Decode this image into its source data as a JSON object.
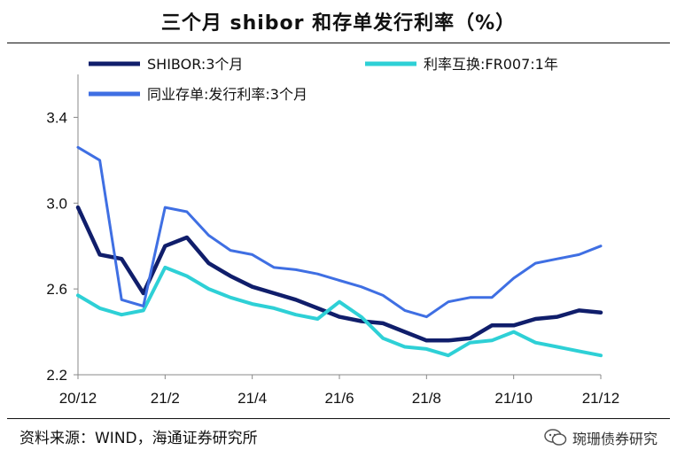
{
  "title": "三个月 shibor 和存单发行利率（%）",
  "source": "资料来源：WIND，海通证券研究所",
  "watermark": "琬珊债券研究",
  "chart_data": {
    "type": "line",
    "ylim": [
      2.2,
      3.6
    ],
    "yticks": [
      "2.2",
      "2.6",
      "3.0",
      "3.4"
    ],
    "xticks": [
      "20/12",
      "21/2",
      "21/4",
      "21/6",
      "21/8",
      "21/10",
      "21/12"
    ],
    "legend_position": "top-left",
    "series": [
      {
        "name": "SHIBOR:3个月",
        "color": "#101e6b",
        "x": [
          "20/12",
          "20/12.5",
          "21/1",
          "21/1.5",
          "21/2",
          "21/2.5",
          "21/3",
          "21/3.5",
          "21/4",
          "21/4.5",
          "21/5",
          "21/5.5",
          "21/6",
          "21/6.5",
          "21/7",
          "21/7.5",
          "21/8",
          "21/8.5",
          "21/9",
          "21/9.5",
          "21/10",
          "21/10.5",
          "21/11",
          "21/11.5",
          "21/12"
        ],
        "values": [
          2.98,
          2.76,
          2.74,
          2.58,
          2.8,
          2.84,
          2.72,
          2.66,
          2.61,
          2.58,
          2.55,
          2.51,
          2.47,
          2.45,
          2.44,
          2.4,
          2.36,
          2.36,
          2.37,
          2.43,
          2.43,
          2.46,
          2.47,
          2.5,
          2.49
        ]
      },
      {
        "name": "利率互换:FR007:1年",
        "color": "#2ed0d6",
        "x": [
          "20/12",
          "20/12.5",
          "21/1",
          "21/1.5",
          "21/2",
          "21/2.5",
          "21/3",
          "21/3.5",
          "21/4",
          "21/4.5",
          "21/5",
          "21/5.5",
          "21/6",
          "21/6.5",
          "21/7",
          "21/7.5",
          "21/8",
          "21/8.5",
          "21/9",
          "21/9.5",
          "21/10",
          "21/10.5",
          "21/11",
          "21/11.5",
          "21/12"
        ],
        "values": [
          2.57,
          2.51,
          2.48,
          2.5,
          2.7,
          2.66,
          2.6,
          2.56,
          2.53,
          2.51,
          2.48,
          2.46,
          2.54,
          2.47,
          2.37,
          2.33,
          2.32,
          2.29,
          2.35,
          2.36,
          2.4,
          2.35,
          2.33,
          2.31,
          2.29
        ]
      },
      {
        "name": "同业存单:发行利率:3个月",
        "color": "#3f6fe3",
        "x": [
          "20/12",
          "20/12.5",
          "21/1",
          "21/1.5",
          "21/2",
          "21/2.5",
          "21/3",
          "21/3.5",
          "21/4",
          "21/4.5",
          "21/5",
          "21/5.5",
          "21/6",
          "21/6.5",
          "21/7",
          "21/7.5",
          "21/8",
          "21/8.5",
          "21/9",
          "21/9.5",
          "21/10",
          "21/10.5",
          "21/11",
          "21/11.5",
          "21/12"
        ],
        "values": [
          3.26,
          3.2,
          2.55,
          2.52,
          2.98,
          2.96,
          2.85,
          2.78,
          2.76,
          2.7,
          2.69,
          2.67,
          2.64,
          2.61,
          2.57,
          2.5,
          2.47,
          2.54,
          2.56,
          2.56,
          2.65,
          2.72,
          2.74,
          2.76,
          2.8
        ]
      }
    ]
  }
}
